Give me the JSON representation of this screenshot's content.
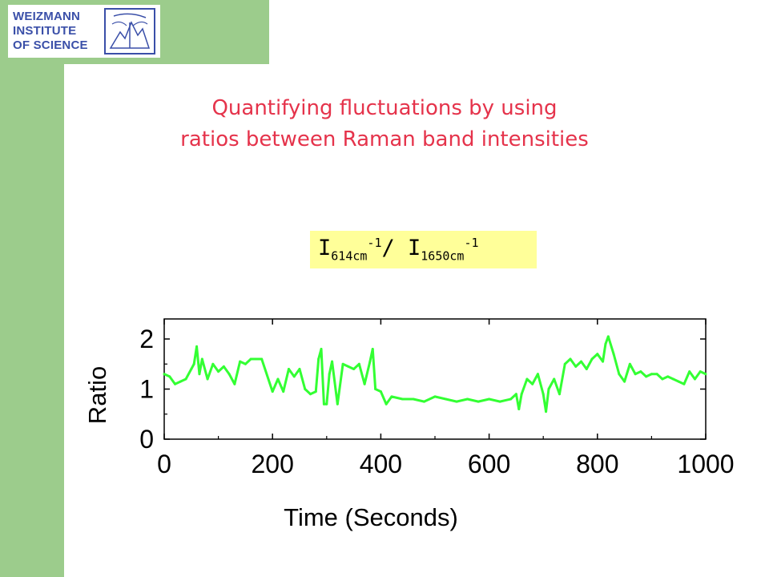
{
  "logo": {
    "lines": [
      "WEIZMANN",
      "INSTITUTE",
      "OF SCIENCE"
    ],
    "emblem_icon": "weizmann-emblem-icon"
  },
  "slide": {
    "title_line1": "Quantifying fluctuations by using",
    "title_line2": "ratios between Raman band intensities",
    "ratio_label": {
      "numerator": "I",
      "numerator_sub": "614cm",
      "numerator_sup": "-1",
      "separator": "/ ",
      "denominator": "I",
      "denominator_sub": "1650cm",
      "denominator_sup": "-1"
    }
  },
  "colors": {
    "sidebar": "#9ccc8c",
    "title": "#e5334b",
    "logo": "#3a4fa8",
    "ratio_box": "#ffff99",
    "series": "#33ff33"
  },
  "chart_data": {
    "type": "line",
    "xlabel": "Time (Seconds)",
    "ylabel": "Ratio",
    "xlim": [
      0,
      1000
    ],
    "ylim": [
      0,
      2.4
    ],
    "xticks": [
      "0",
      "200",
      "400",
      "600",
      "800",
      "1000"
    ],
    "yticks": [
      "0",
      "1",
      "2"
    ],
    "grid": false,
    "series": [
      {
        "x": [
          0,
          10,
          20,
          30,
          40,
          50,
          55,
          60,
          65,
          70,
          80,
          90,
          100,
          110,
          120,
          130,
          140,
          150,
          160,
          170,
          180,
          200,
          210,
          220,
          230,
          240,
          250,
          260,
          270,
          280,
          285,
          290,
          295,
          300,
          305,
          310,
          320,
          330,
          340,
          350,
          360,
          370,
          380,
          385,
          390,
          400,
          410,
          420,
          440,
          460,
          480,
          500,
          520,
          540,
          560,
          580,
          600,
          620,
          640,
          650,
          655,
          660,
          670,
          680,
          690,
          700,
          705,
          710,
          720,
          730,
          740,
          750,
          760,
          770,
          780,
          790,
          800,
          810,
          815,
          820,
          830,
          840,
          850,
          860,
          870,
          880,
          890,
          900,
          910,
          920,
          930,
          940,
          950,
          960,
          970,
          980,
          990,
          1000
        ],
        "values": [
          1.3,
          1.25,
          1.1,
          1.15,
          1.2,
          1.4,
          1.5,
          1.85,
          1.3,
          1.6,
          1.2,
          1.5,
          1.35,
          1.45,
          1.3,
          1.1,
          1.55,
          1.5,
          1.6,
          1.6,
          1.6,
          0.95,
          1.2,
          0.95,
          1.4,
          1.25,
          1.4,
          1.0,
          0.9,
          0.95,
          1.6,
          1.8,
          0.7,
          0.7,
          1.3,
          1.55,
          0.7,
          1.5,
          1.45,
          1.4,
          1.5,
          1.1,
          1.55,
          1.8,
          1.0,
          0.95,
          0.7,
          0.85,
          0.8,
          0.8,
          0.75,
          0.85,
          0.8,
          0.75,
          0.8,
          0.75,
          0.8,
          0.75,
          0.8,
          0.9,
          0.6,
          0.9,
          1.2,
          1.1,
          1.3,
          0.9,
          0.55,
          1.0,
          1.2,
          0.9,
          1.5,
          1.6,
          1.45,
          1.55,
          1.4,
          1.6,
          1.7,
          1.55,
          1.9,
          2.05,
          1.7,
          1.3,
          1.15,
          1.5,
          1.3,
          1.35,
          1.25,
          1.3,
          1.3,
          1.2,
          1.25,
          1.2,
          1.15,
          1.1,
          1.35,
          1.2,
          1.35,
          1.3
        ]
      }
    ]
  }
}
